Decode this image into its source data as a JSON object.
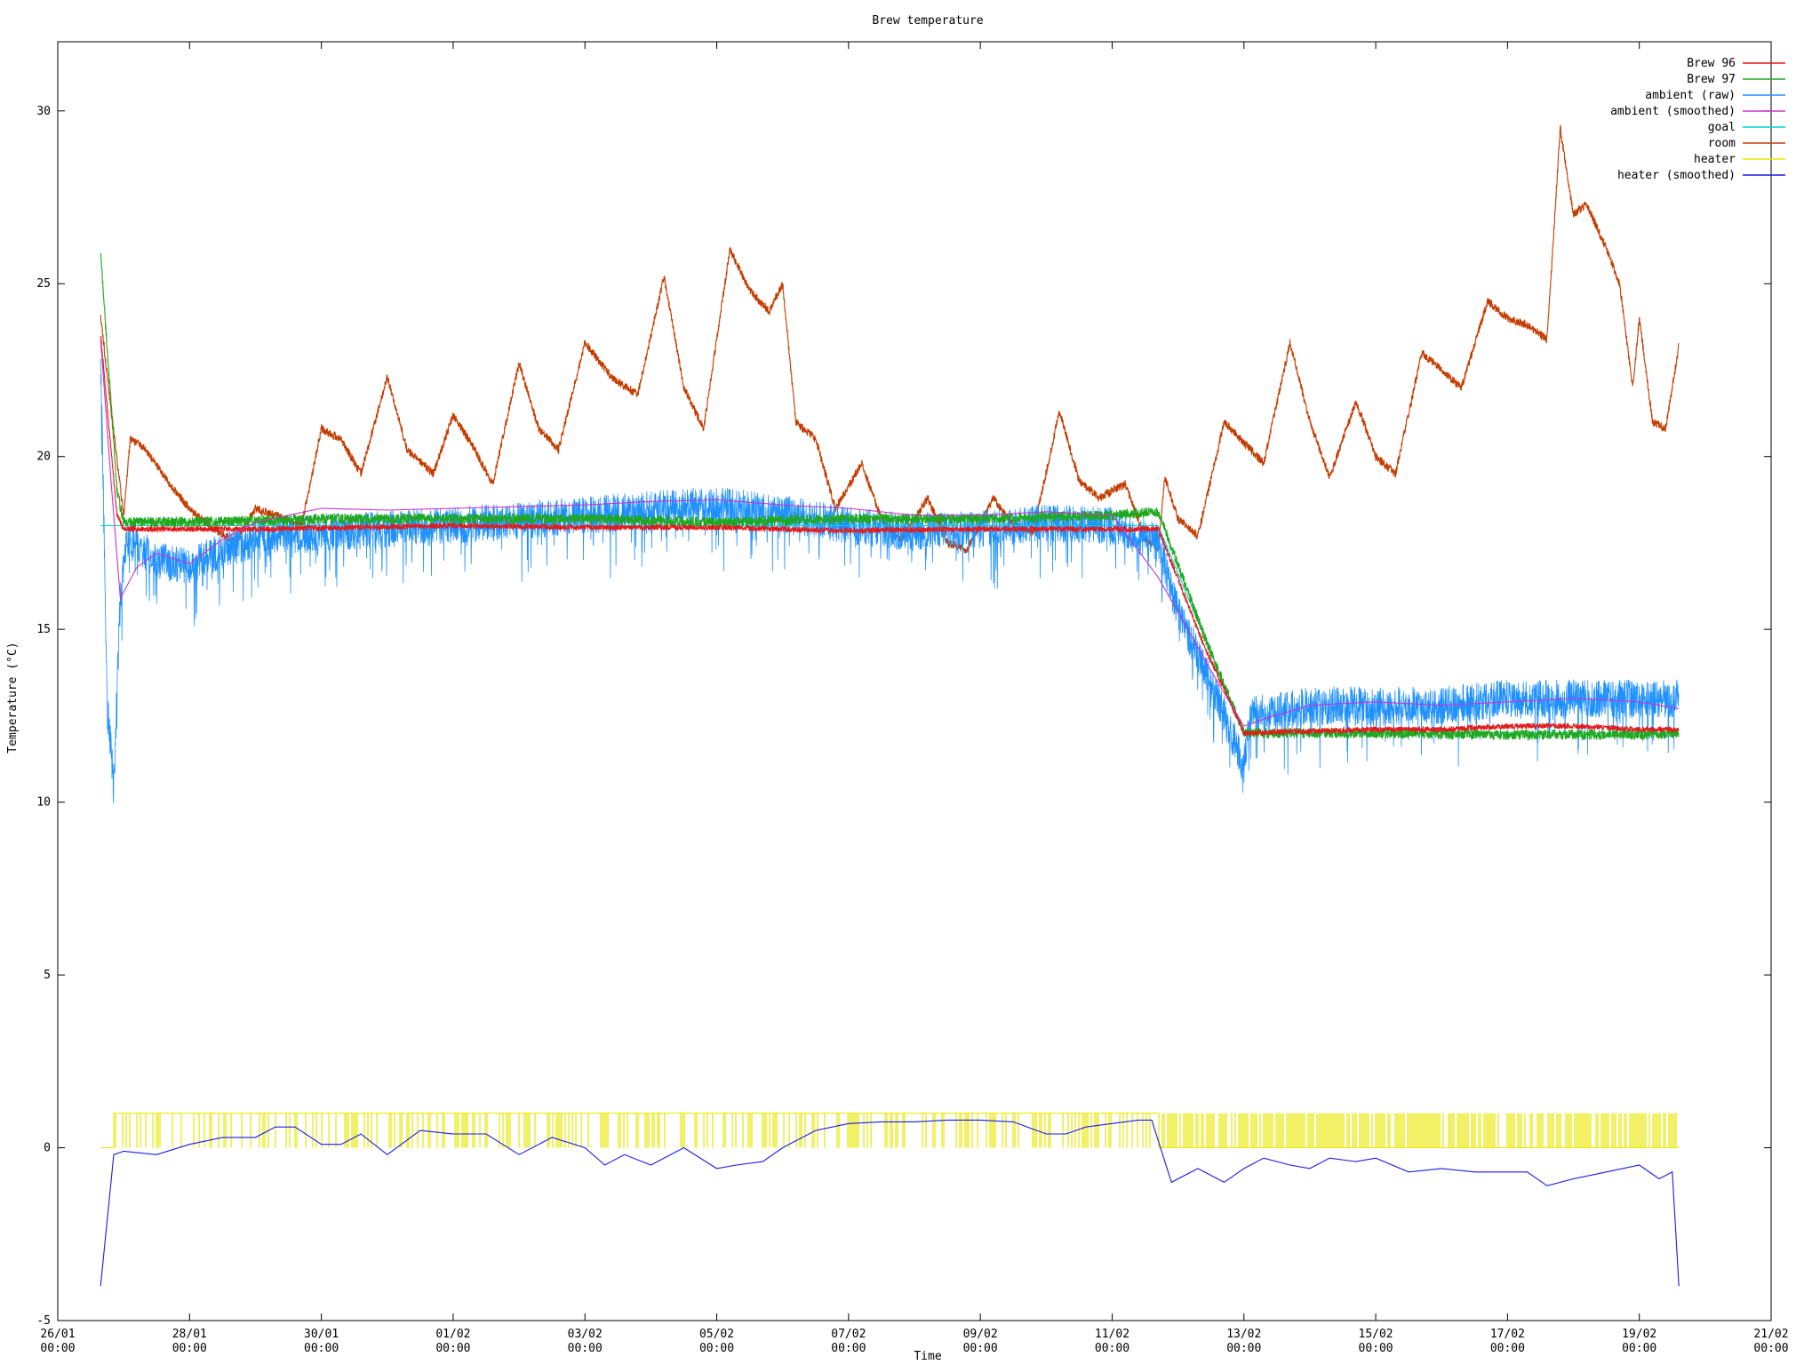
{
  "chart_data": {
    "type": "line",
    "title": "Brew temperature",
    "xlabel": "Time",
    "ylabel": "Temperature (°C)",
    "ylim": [
      -5,
      32
    ],
    "yticks": [
      -5,
      0,
      5,
      10,
      15,
      20,
      25,
      30
    ],
    "xlim": [
      0,
      26
    ],
    "xticks": [
      {
        "x": 0,
        "date": "26/01",
        "time": "00:00"
      },
      {
        "x": 2,
        "date": "28/01",
        "time": "00:00"
      },
      {
        "x": 4,
        "date": "30/01",
        "time": "00:00"
      },
      {
        "x": 6,
        "date": "01/02",
        "time": "00:00"
      },
      {
        "x": 8,
        "date": "03/02",
        "time": "00:00"
      },
      {
        "x": 10,
        "date": "05/02",
        "time": "00:00"
      },
      {
        "x": 12,
        "date": "07/02",
        "time": "00:00"
      },
      {
        "x": 14,
        "date": "09/02",
        "time": "00:00"
      },
      {
        "x": 16,
        "date": "11/02",
        "time": "00:00"
      },
      {
        "x": 18,
        "date": "13/02",
        "time": "00:00"
      },
      {
        "x": 20,
        "date": "15/02",
        "time": "00:00"
      },
      {
        "x": 22,
        "date": "17/02",
        "time": "00:00"
      },
      {
        "x": 24,
        "date": "19/02",
        "time": "00:00"
      },
      {
        "x": 26,
        "date": "21/02",
        "time": "00:00"
      }
    ],
    "grid": false,
    "legend_position": "top-right",
    "series": [
      {
        "name": "Brew 96",
        "color": "#e31a1c",
        "noise": 0.08,
        "points": [
          [
            0.65,
            23.5
          ],
          [
            0.9,
            18.3
          ],
          [
            1.0,
            17.9
          ],
          [
            3.0,
            17.9
          ],
          [
            6.0,
            18.0
          ],
          [
            8.0,
            17.95
          ],
          [
            10.0,
            17.95
          ],
          [
            12.0,
            17.85
          ],
          [
            14.0,
            17.9
          ],
          [
            16.0,
            17.9
          ],
          [
            16.7,
            17.9
          ],
          [
            17.4,
            14.5
          ],
          [
            18.0,
            12.0
          ],
          [
            20.0,
            12.1
          ],
          [
            21.0,
            12.1
          ],
          [
            22.0,
            12.2
          ],
          [
            23.0,
            12.2
          ],
          [
            24.0,
            12.1
          ],
          [
            24.6,
            12.1
          ]
        ]
      },
      {
        "name": "Brew 97",
        "color": "#1fa81f",
        "noise": 0.15,
        "points": [
          [
            0.65,
            25.9
          ],
          [
            0.9,
            19.0
          ],
          [
            1.0,
            18.1
          ],
          [
            2.0,
            18.1
          ],
          [
            4.0,
            18.2
          ],
          [
            6.0,
            18.2
          ],
          [
            8.0,
            18.2
          ],
          [
            10.0,
            18.1
          ],
          [
            12.0,
            18.2
          ],
          [
            14.0,
            18.2
          ],
          [
            16.0,
            18.3
          ],
          [
            16.7,
            18.4
          ],
          [
            17.4,
            14.8
          ],
          [
            18.0,
            12.0
          ],
          [
            20.0,
            12.0
          ],
          [
            22.0,
            11.95
          ],
          [
            24.0,
            11.95
          ],
          [
            24.6,
            12.0
          ]
        ]
      },
      {
        "name": "ambient (raw)",
        "color": "#1e90ff",
        "noise": 0.55,
        "points": [
          [
            0.65,
            23.0
          ],
          [
            0.7,
            18.0
          ],
          [
            0.75,
            13.0
          ],
          [
            0.85,
            10.5
          ],
          [
            0.95,
            16.0
          ],
          [
            1.05,
            17.6
          ],
          [
            1.5,
            17.0
          ],
          [
            2.0,
            16.8
          ],
          [
            2.5,
            17.3
          ],
          [
            3.0,
            17.6
          ],
          [
            4.0,
            17.8
          ],
          [
            6.0,
            18.0
          ],
          [
            8.0,
            18.3
          ],
          [
            10.0,
            18.6
          ],
          [
            11.5,
            18.2
          ],
          [
            12.0,
            18.0
          ],
          [
            13.0,
            17.8
          ],
          [
            14.0,
            17.9
          ],
          [
            15.0,
            18.1
          ],
          [
            16.0,
            18.0
          ],
          [
            16.7,
            17.5
          ],
          [
            17.0,
            15.5
          ],
          [
            17.5,
            13.5
          ],
          [
            18.0,
            11.0
          ],
          [
            18.1,
            12.5
          ],
          [
            19.0,
            12.8
          ],
          [
            20.0,
            12.8
          ],
          [
            21.0,
            12.8
          ],
          [
            22.0,
            13.0
          ],
          [
            23.0,
            13.0
          ],
          [
            24.0,
            13.0
          ],
          [
            24.6,
            13.0
          ]
        ]
      },
      {
        "name": "ambient (smoothed)",
        "color": "#cc33cc",
        "noise": 0.0,
        "points": [
          [
            0.65,
            23.4
          ],
          [
            0.8,
            19.5
          ],
          [
            0.95,
            15.9
          ],
          [
            1.2,
            16.8
          ],
          [
            1.5,
            17.2
          ],
          [
            2.0,
            16.9
          ],
          [
            2.5,
            17.6
          ],
          [
            3.0,
            18.1
          ],
          [
            3.5,
            18.3
          ],
          [
            4.0,
            18.5
          ],
          [
            5.0,
            18.45
          ],
          [
            6.0,
            18.5
          ],
          [
            7.0,
            18.55
          ],
          [
            8.0,
            18.6
          ],
          [
            9.0,
            18.7
          ],
          [
            10.0,
            18.75
          ],
          [
            11.0,
            18.6
          ],
          [
            12.0,
            18.5
          ],
          [
            13.0,
            18.3
          ],
          [
            14.0,
            18.3
          ],
          [
            15.0,
            18.4
          ],
          [
            16.0,
            18.3
          ],
          [
            16.7,
            16.5
          ],
          [
            17.0,
            15.5
          ],
          [
            17.5,
            13.8
          ],
          [
            18.0,
            12.2
          ],
          [
            18.3,
            12.4
          ],
          [
            19.0,
            12.8
          ],
          [
            20.0,
            12.9
          ],
          [
            21.0,
            12.8
          ],
          [
            22.0,
            12.9
          ],
          [
            23.0,
            13.0
          ],
          [
            24.0,
            12.9
          ],
          [
            24.6,
            12.7
          ]
        ]
      },
      {
        "name": "goal",
        "color": "#00d0d0",
        "noise": 0.0,
        "points": [
          [
            0.65,
            18.0
          ],
          [
            16.7,
            18.0
          ],
          [
            18.0,
            12.0
          ],
          [
            24.6,
            12.0
          ]
        ]
      },
      {
        "name": "room",
        "color": "#c43c00",
        "noise": 0.12,
        "points": [
          [
            0.65,
            24.1
          ],
          [
            0.8,
            21.5
          ],
          [
            1.0,
            18.3
          ],
          [
            1.1,
            20.5
          ],
          [
            1.3,
            20.3
          ],
          [
            1.7,
            19.2
          ],
          [
            2.0,
            18.5
          ],
          [
            2.3,
            18.0
          ],
          [
            2.7,
            17.5
          ],
          [
            3.0,
            18.5
          ],
          [
            3.3,
            18.3
          ],
          [
            3.7,
            18.0
          ],
          [
            4.0,
            20.8
          ],
          [
            4.3,
            20.5
          ],
          [
            4.6,
            19.5
          ],
          [
            5.0,
            22.3
          ],
          [
            5.3,
            20.2
          ],
          [
            5.7,
            19.5
          ],
          [
            6.0,
            21.2
          ],
          [
            6.3,
            20.3
          ],
          [
            6.6,
            19.2
          ],
          [
            7.0,
            22.7
          ],
          [
            7.3,
            20.8
          ],
          [
            7.6,
            20.2
          ],
          [
            8.0,
            23.3
          ],
          [
            8.4,
            22.3
          ],
          [
            8.8,
            21.8
          ],
          [
            9.2,
            25.2
          ],
          [
            9.5,
            22.0
          ],
          [
            9.8,
            20.8
          ],
          [
            10.2,
            26.0
          ],
          [
            10.5,
            24.8
          ],
          [
            10.8,
            24.2
          ],
          [
            11.0,
            25.0
          ],
          [
            11.2,
            21.0
          ],
          [
            11.5,
            20.5
          ],
          [
            11.8,
            18.5
          ],
          [
            12.2,
            19.8
          ],
          [
            12.5,
            18.2
          ],
          [
            12.8,
            17.6
          ],
          [
            13.2,
            18.8
          ],
          [
            13.5,
            17.5
          ],
          [
            13.8,
            17.3
          ],
          [
            14.2,
            18.8
          ],
          [
            14.5,
            18.0
          ],
          [
            14.8,
            17.8
          ],
          [
            15.2,
            21.3
          ],
          [
            15.5,
            19.3
          ],
          [
            15.8,
            18.8
          ],
          [
            16.2,
            19.2
          ],
          [
            16.5,
            17.6
          ],
          [
            16.7,
            17.4
          ],
          [
            16.8,
            19.4
          ],
          [
            17.0,
            18.2
          ],
          [
            17.3,
            17.7
          ],
          [
            17.7,
            21.0
          ],
          [
            18.0,
            20.4
          ],
          [
            18.3,
            19.8
          ],
          [
            18.7,
            23.3
          ],
          [
            19.0,
            21.0
          ],
          [
            19.3,
            19.4
          ],
          [
            19.7,
            21.6
          ],
          [
            20.0,
            20.0
          ],
          [
            20.3,
            19.5
          ],
          [
            20.7,
            23.0
          ],
          [
            21.0,
            22.5
          ],
          [
            21.3,
            22.0
          ],
          [
            21.7,
            24.5
          ],
          [
            22.0,
            24.0
          ],
          [
            22.3,
            23.8
          ],
          [
            22.6,
            23.4
          ],
          [
            22.8,
            29.5
          ],
          [
            23.0,
            27.0
          ],
          [
            23.2,
            27.3
          ],
          [
            23.5,
            26.0
          ],
          [
            23.7,
            25.0
          ],
          [
            23.9,
            22.0
          ],
          [
            24.0,
            24.0
          ],
          [
            24.2,
            21.0
          ],
          [
            24.4,
            20.8
          ],
          [
            24.6,
            23.2
          ]
        ]
      },
      {
        "name": "heater",
        "color": "#e8e800",
        "noise": 0.0,
        "points": [
          [
            0.65,
            0
          ],
          [
            0.85,
            0
          ],
          [
            0.85,
            1
          ],
          [
            16.7,
            1
          ],
          [
            16.7,
            0
          ],
          [
            24.6,
            0
          ]
        ]
      },
      {
        "name": "heater (smoothed)",
        "color": "#1a1ae6",
        "noise": 0.0,
        "points": [
          [
            0.65,
            -4.0
          ],
          [
            0.85,
            -0.2
          ],
          [
            1.0,
            -0.1
          ],
          [
            1.5,
            -0.2
          ],
          [
            2.0,
            0.1
          ],
          [
            2.5,
            0.3
          ],
          [
            3.0,
            0.3
          ],
          [
            3.3,
            0.6
          ],
          [
            3.6,
            0.6
          ],
          [
            4.0,
            0.1
          ],
          [
            4.3,
            0.1
          ],
          [
            4.6,
            0.4
          ],
          [
            5.0,
            -0.2
          ],
          [
            5.5,
            0.5
          ],
          [
            6.0,
            0.4
          ],
          [
            6.5,
            0.4
          ],
          [
            7.0,
            -0.2
          ],
          [
            7.5,
            0.3
          ],
          [
            8.0,
            0.0
          ],
          [
            8.3,
            -0.5
          ],
          [
            8.6,
            -0.2
          ],
          [
            9.0,
            -0.5
          ],
          [
            9.5,
            0.0
          ],
          [
            10.0,
            -0.6
          ],
          [
            10.3,
            -0.5
          ],
          [
            10.7,
            -0.4
          ],
          [
            11.0,
            0.0
          ],
          [
            11.5,
            0.5
          ],
          [
            12.0,
            0.7
          ],
          [
            12.5,
            0.75
          ],
          [
            13.0,
            0.75
          ],
          [
            13.5,
            0.8
          ],
          [
            14.0,
            0.8
          ],
          [
            14.5,
            0.75
          ],
          [
            15.0,
            0.4
          ],
          [
            15.3,
            0.4
          ],
          [
            15.6,
            0.6
          ],
          [
            16.0,
            0.7
          ],
          [
            16.4,
            0.8
          ],
          [
            16.6,
            0.8
          ],
          [
            16.9,
            -1.0
          ],
          [
            17.3,
            -0.6
          ],
          [
            17.7,
            -1.0
          ],
          [
            18.0,
            -0.6
          ],
          [
            18.3,
            -0.3
          ],
          [
            18.7,
            -0.5
          ],
          [
            19.0,
            -0.6
          ],
          [
            19.3,
            -0.3
          ],
          [
            19.7,
            -0.4
          ],
          [
            20.0,
            -0.3
          ],
          [
            20.5,
            -0.7
          ],
          [
            21.0,
            -0.6
          ],
          [
            21.5,
            -0.7
          ],
          [
            22.0,
            -0.7
          ],
          [
            22.3,
            -0.7
          ],
          [
            22.6,
            -1.1
          ],
          [
            23.0,
            -0.9
          ],
          [
            23.5,
            -0.7
          ],
          [
            24.0,
            -0.5
          ],
          [
            24.3,
            -0.9
          ],
          [
            24.5,
            -0.7
          ],
          [
            24.6,
            -4.0
          ]
        ]
      }
    ]
  }
}
